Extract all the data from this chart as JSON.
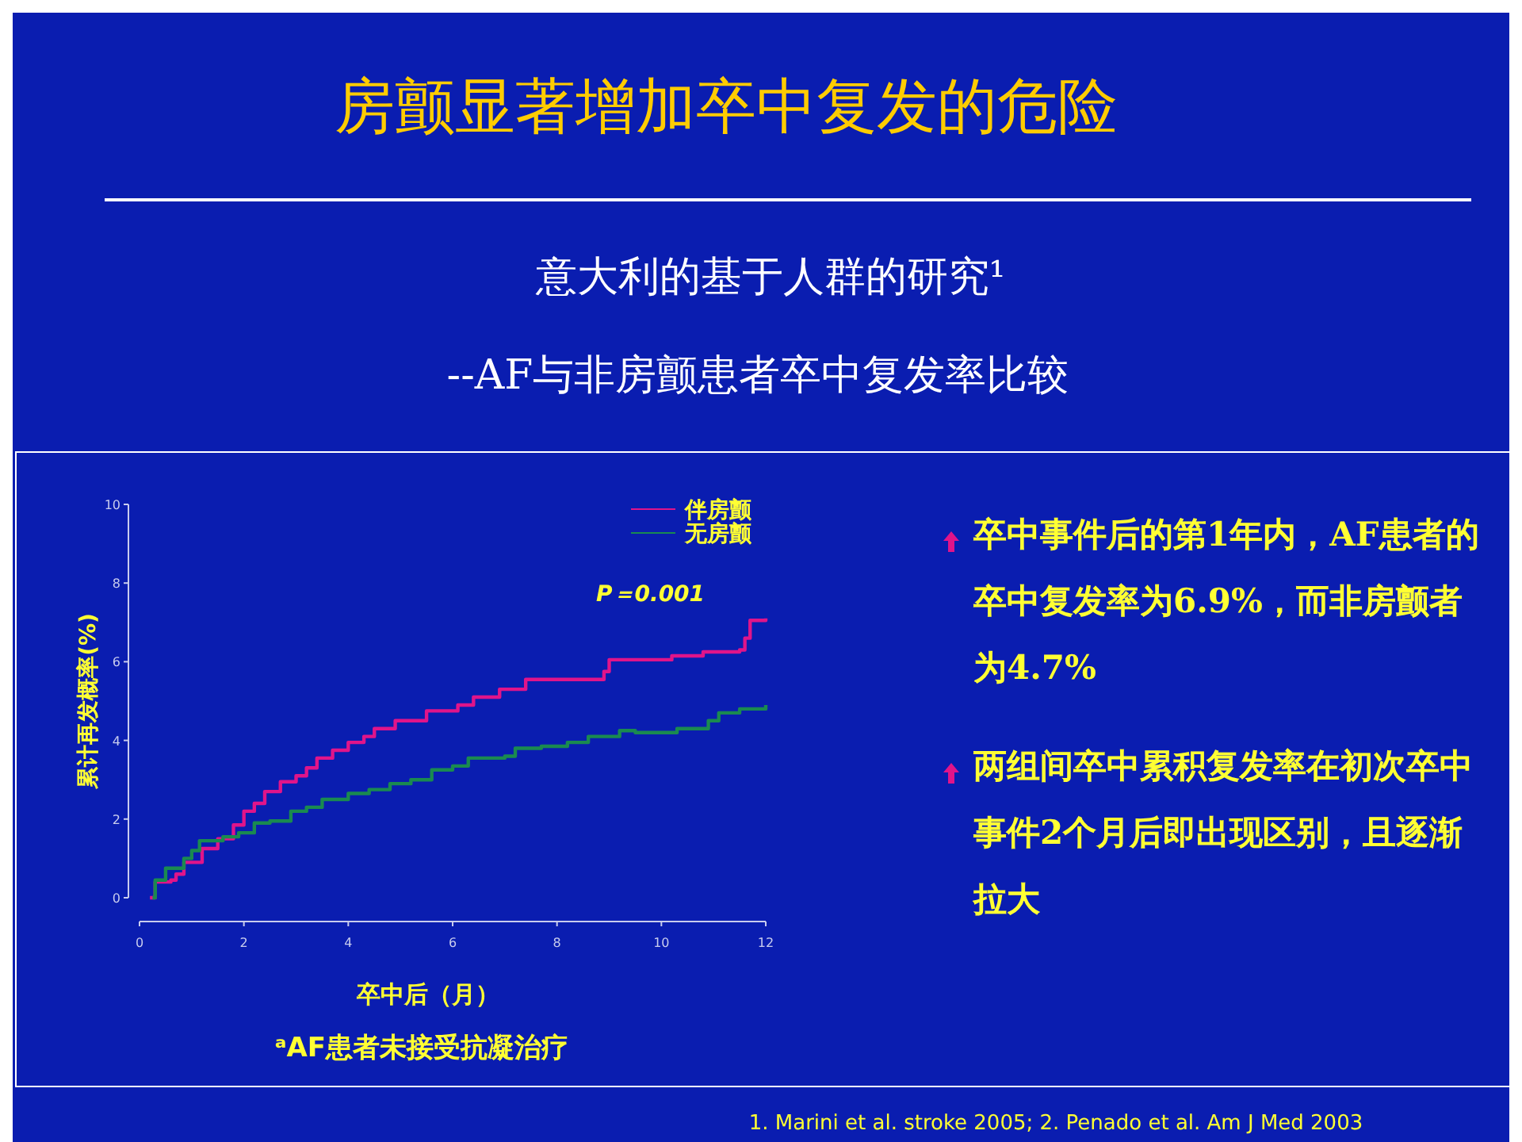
{
  "chart_data": {
    "type": "step",
    "title": "房颤显著增加卒中复发的危险",
    "subtitle": "意大利的基于人群的研究¹\n--AF与非房颤患者卒中复发率比较",
    "xlabel": "卒中后（月）",
    "ylabel": "累计再发概率(%)",
    "xlim": [
      0,
      12
    ],
    "xticks": [
      0,
      2,
      4,
      6,
      8,
      10,
      12
    ],
    "ylim": [
      0,
      10
    ],
    "yticks": [
      0,
      2,
      4,
      6,
      8,
      10
    ],
    "grid": false,
    "legend": "top right",
    "series": [
      {
        "name": "伴房颤",
        "color": "#e0148a",
        "x": [
          0.2,
          0.3,
          0.6,
          0.7,
          0.85,
          1.2,
          1.5,
          1.8,
          2.0,
          2.2,
          2.4,
          2.7,
          3.0,
          3.2,
          3.4,
          3.7,
          4.0,
          4.3,
          4.5,
          4.9,
          5.5,
          6.1,
          6.4,
          6.9,
          7.4,
          8.9,
          9.0,
          10.2,
          10.8,
          11.5,
          11.6,
          11.7,
          12.0
        ],
        "values": [
          0,
          0.4,
          0.45,
          0.6,
          0.9,
          1.25,
          1.5,
          1.85,
          2.2,
          2.4,
          2.7,
          2.95,
          3.1,
          3.3,
          3.55,
          3.75,
          3.95,
          4.1,
          4.3,
          4.5,
          4.75,
          4.9,
          5.1,
          5.3,
          5.55,
          5.75,
          6.05,
          6.15,
          6.25,
          6.3,
          6.6,
          7.05,
          7.1
        ]
      },
      {
        "name": "无房颤",
        "color": "#1a8a50",
        "x": [
          0.25,
          0.3,
          0.5,
          0.85,
          1.0,
          1.15,
          1.6,
          1.9,
          2.2,
          2.5,
          2.9,
          3.2,
          3.5,
          4.0,
          4.4,
          4.8,
          5.2,
          5.6,
          6.0,
          6.3,
          7.0,
          7.2,
          7.7,
          8.2,
          8.6,
          9.2,
          9.5,
          10.3,
          10.9,
          11.1,
          11.5,
          12.0
        ],
        "values": [
          0,
          0.45,
          0.75,
          1.0,
          1.2,
          1.45,
          1.55,
          1.65,
          1.9,
          1.95,
          2.2,
          2.3,
          2.5,
          2.65,
          2.75,
          2.9,
          3.0,
          3.25,
          3.35,
          3.55,
          3.6,
          3.8,
          3.85,
          3.95,
          4.1,
          4.25,
          4.2,
          4.3,
          4.5,
          4.7,
          4.8,
          4.9
        ]
      }
    ],
    "annotations": [
      "P＝0.001",
      "卒中事件后的第1年内，AF患者的卒中复发率为6.9%，而非房颤者为4.7%",
      "两组间卒中累积复发率在初次卒中事件2个月后即出现区别，且逐渐拉大",
      "ᵃAF患者未接受抗凝治疗",
      "1. Marini et al. stroke 2005; 2. Penado et al. Am J Med 2003"
    ]
  }
}
